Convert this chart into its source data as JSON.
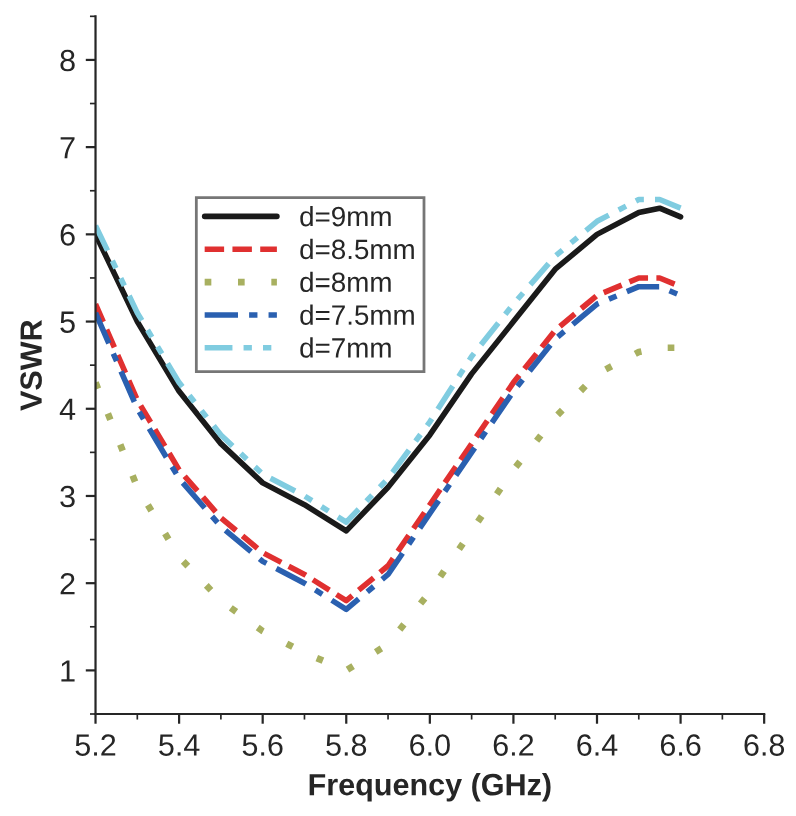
{
  "chart_data": {
    "type": "line",
    "xlabel": "Frequency (GHz)",
    "ylabel": "VSWR",
    "x": [
      5.2,
      5.3,
      5.4,
      5.5,
      5.6,
      5.7,
      5.8,
      5.9,
      6.0,
      6.1,
      6.2,
      6.3,
      6.4,
      6.5,
      6.55,
      6.6
    ],
    "series": [
      {
        "name": "d=9mm",
        "color": "#1a1a1a",
        "line_style": "solid",
        "values": [
          6.0,
          5.0,
          4.2,
          3.6,
          3.15,
          2.9,
          2.6,
          3.1,
          3.7,
          4.4,
          5.0,
          5.6,
          6.0,
          6.25,
          6.3,
          6.2
        ]
      },
      {
        "name": "d=8.5mm",
        "color": "#e03030",
        "line_style": "dashed",
        "values": [
          5.2,
          4.1,
          3.3,
          2.75,
          2.35,
          2.1,
          1.8,
          2.2,
          2.9,
          3.6,
          4.3,
          4.9,
          5.3,
          5.5,
          5.5,
          5.4
        ]
      },
      {
        "name": "d=8mm",
        "color": "#a8b060",
        "line_style": "dotted",
        "values": [
          4.3,
          3.1,
          2.3,
          1.8,
          1.45,
          1.2,
          1.0,
          1.3,
          1.9,
          2.6,
          3.3,
          3.9,
          4.4,
          4.65,
          4.7,
          4.7
        ]
      },
      {
        "name": "d=7.5mm",
        "color": "#2a60b0",
        "line_style": "dashdot",
        "values": [
          5.1,
          4.0,
          3.2,
          2.65,
          2.25,
          2.0,
          1.7,
          2.1,
          2.8,
          3.5,
          4.2,
          4.8,
          5.2,
          5.4,
          5.4,
          5.3
        ]
      },
      {
        "name": "d=7mm",
        "color": "#80cce0",
        "line_style": "dashdotdot",
        "values": [
          6.1,
          5.1,
          4.3,
          3.7,
          3.25,
          3.0,
          2.7,
          3.2,
          3.85,
          4.6,
          5.2,
          5.75,
          6.15,
          6.4,
          6.4,
          6.3
        ]
      }
    ],
    "xlim": [
      5.2,
      6.8
    ],
    "xticks": [
      {
        "value": 5.2,
        "label": "5.2"
      },
      {
        "value": 5.4,
        "label": "5.4"
      },
      {
        "value": 5.6,
        "label": "5.6"
      },
      {
        "value": 5.8,
        "label": "5.8"
      },
      {
        "value": 6.0,
        "label": "6.0"
      },
      {
        "value": 6.2,
        "label": "6.2"
      },
      {
        "value": 6.4,
        "label": "6.4"
      },
      {
        "value": 6.6,
        "label": "6.6"
      },
      {
        "value": 6.8,
        "label": "6.8"
      }
    ],
    "ylim": [
      0.5,
      8.5
    ],
    "yticks": [
      1,
      2,
      3,
      4,
      5,
      6,
      7,
      8
    ],
    "grid": false,
    "legend": "top left",
    "marker": "none"
  }
}
